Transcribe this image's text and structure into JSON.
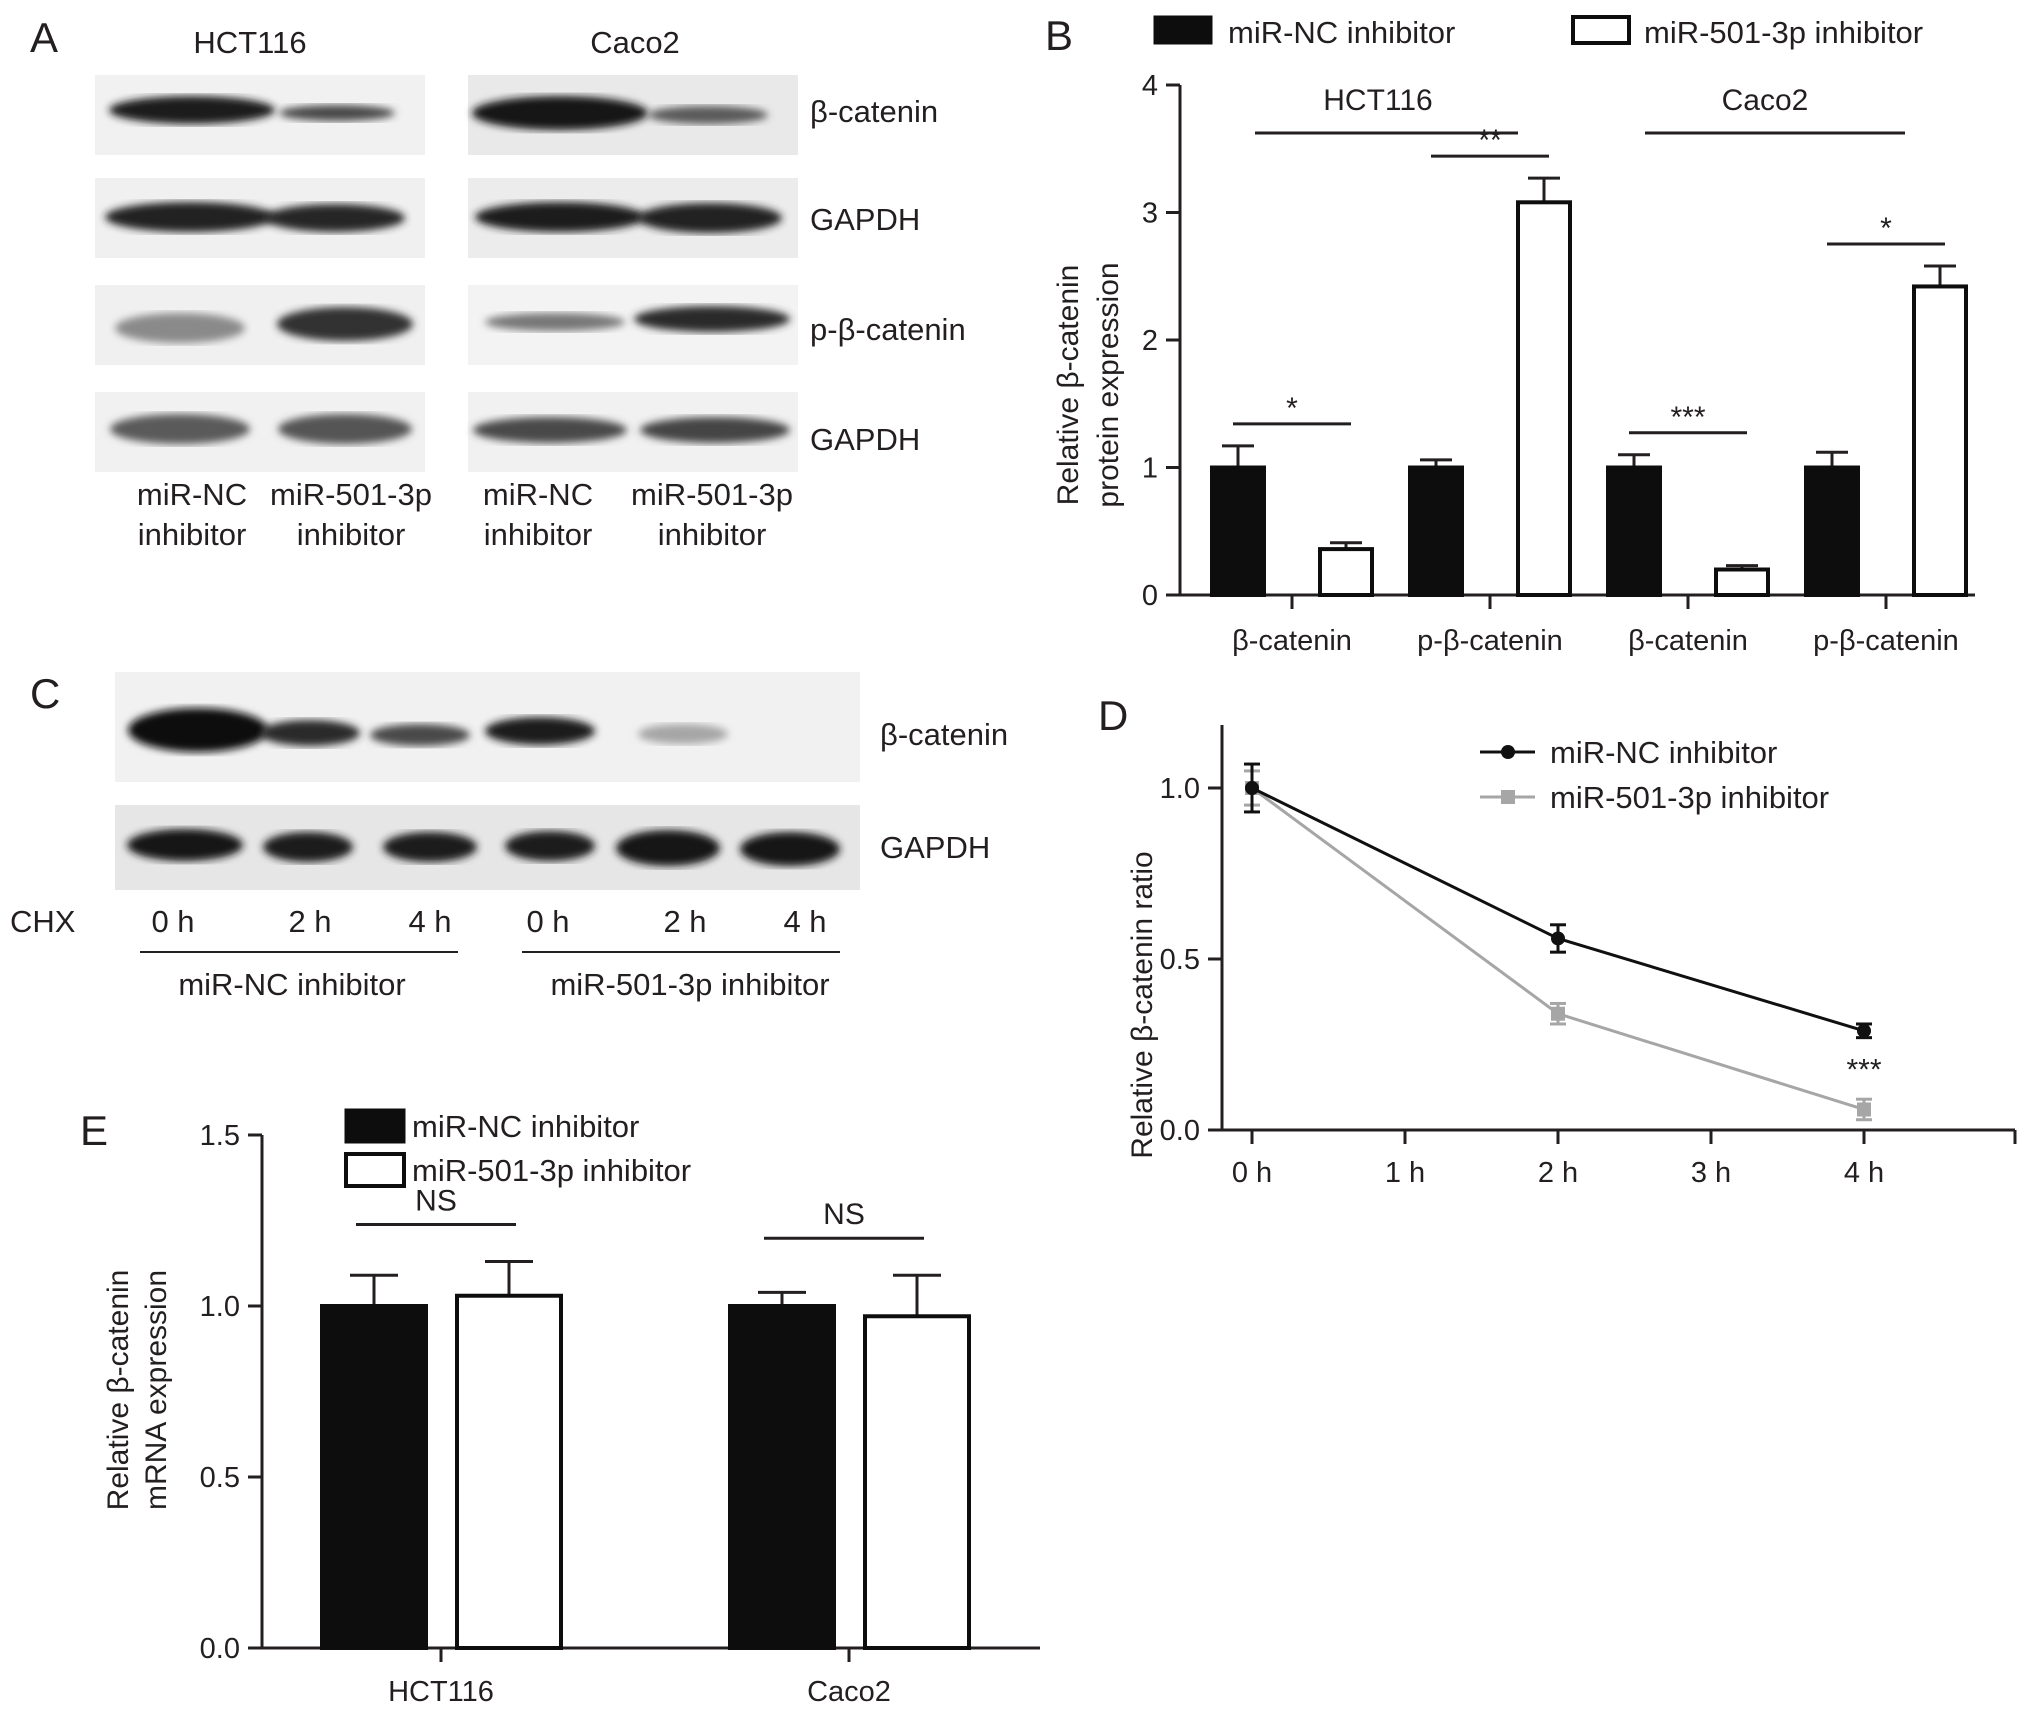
{
  "colors": {
    "filled": "#0d0d0d",
    "open": "#ffffff",
    "nc_line": "#101010",
    "inh_line": "#a6a6a6",
    "blot_band": "#1a1a1a"
  },
  "panelA": {
    "label": "A",
    "cells": [
      "HCT116",
      "Caco2"
    ],
    "blots": [
      "β-catenin",
      "GAPDH",
      "p-β-catenin",
      "GAPDH"
    ],
    "lanes": [
      {
        "line1": "miR-NC",
        "line2": "inhibitor"
      },
      {
        "line1": "miR-501-3p",
        "line2": "inhibitor"
      },
      {
        "line1": "miR-NC",
        "line2": "inhibitor"
      },
      {
        "line1": "miR-501-3p",
        "line2": "inhibitor"
      }
    ]
  },
  "panelC": {
    "label": "C",
    "blots": [
      "β-catenin",
      "GAPDH"
    ],
    "chx_label": "CHX",
    "times": [
      "0 h",
      "2 h",
      "4 h",
      "0 h",
      "2 h",
      "4 h"
    ],
    "groups": [
      "miR-NC inhibitor",
      "miR-501-3p inhibitor"
    ]
  },
  "chart_data": [
    {
      "panel": "B",
      "label": "B",
      "type": "bar",
      "ylabel": [
        "Relative β-catenin",
        "protein expression"
      ],
      "ylim": [
        0,
        4
      ],
      "yticks": [
        "0",
        "1",
        "2",
        "3",
        "4"
      ],
      "categories": [
        "β-catenin",
        "p-β-catenin",
        "β-catenin",
        "p-β-catenin"
      ],
      "groups": [
        "HCT116",
        "Caco2"
      ],
      "legend": [
        "miR-NC inhibitor",
        "miR-501-3p inhibitor"
      ],
      "series": [
        {
          "name": "miR-NC inhibitor",
          "values": [
            1.0,
            1.0,
            1.0,
            1.0
          ],
          "errors": [
            0.17,
            0.06,
            0.1,
            0.12
          ]
        },
        {
          "name": "miR-501-3p inhibitor",
          "values": [
            0.36,
            3.08,
            0.2,
            2.42
          ],
          "errors": [
            0.05,
            0.19,
            0.03,
            0.16
          ]
        }
      ],
      "significance": [
        "*",
        "**",
        "***",
        "*"
      ]
    },
    {
      "panel": "D",
      "label": "D",
      "type": "line",
      "ylabel": "Relative β-catenin ratio",
      "ylim": [
        0,
        1.0
      ],
      "yticks": [
        "0.0",
        "0.5",
        "1.0"
      ],
      "x": [
        "0 h",
        "1 h",
        "2 h",
        "3 h",
        "4 h"
      ],
      "legend": [
        "miR-NC inhibitor",
        "miR-501-3p inhibitor"
      ],
      "series": [
        {
          "name": "miR-NC inhibitor",
          "x": [
            0,
            2,
            4
          ],
          "values": [
            1.0,
            0.56,
            0.29
          ],
          "errors": [
            0.07,
            0.04,
            0.02
          ]
        },
        {
          "name": "miR-501-3p inhibitor",
          "x": [
            0,
            2,
            4
          ],
          "values": [
            1.0,
            0.34,
            0.06
          ],
          "errors": [
            0.05,
            0.03,
            0.03
          ]
        }
      ],
      "significance": "***"
    },
    {
      "panel": "E",
      "label": "E",
      "type": "bar",
      "ylabel": [
        "Relative β-catenin",
        "mRNA expression"
      ],
      "ylim": [
        0,
        1.5
      ],
      "yticks": [
        "0.0",
        "0.5",
        "1.0",
        "1.5"
      ],
      "categories": [
        "HCT116",
        "Caco2"
      ],
      "legend": [
        "miR-NC inhibitor",
        "miR-501-3p inhibitor"
      ],
      "series": [
        {
          "name": "miR-NC inhibitor",
          "values": [
            1.0,
            1.0
          ],
          "errors": [
            0.09,
            0.04
          ]
        },
        {
          "name": "miR-501-3p inhibitor",
          "values": [
            1.03,
            0.97
          ],
          "errors": [
            0.1,
            0.12
          ]
        }
      ],
      "significance": [
        "NS",
        "NS"
      ]
    }
  ]
}
